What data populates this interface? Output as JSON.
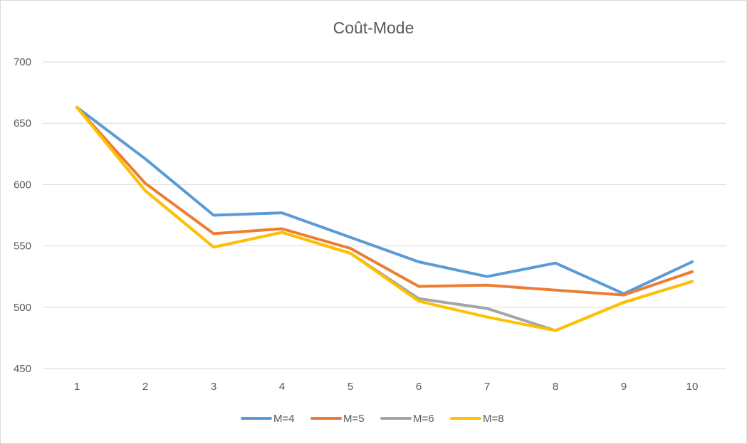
{
  "chart_data": {
    "type": "line",
    "title": "Coût-Mode",
    "xlabel": "",
    "ylabel": "",
    "x": [
      1,
      2,
      3,
      4,
      5,
      6,
      7,
      8,
      9,
      10
    ],
    "ylim": [
      450,
      700
    ],
    "yticks": [
      450,
      500,
      550,
      600,
      650,
      700
    ],
    "grid": true,
    "legend_position": "bottom",
    "series": [
      {
        "name": "M=4",
        "color": "#5b9bd5",
        "values": [
          663,
          621,
          575,
          577,
          557,
          537,
          525,
          536,
          511,
          537
        ]
      },
      {
        "name": "M=5",
        "color": "#ed7d31",
        "values": [
          663,
          601,
          560,
          564,
          548,
          517,
          518,
          514,
          510,
          529
        ]
      },
      {
        "name": "M=6",
        "color": "#a5a5a5",
        "values": [
          663,
          595,
          549,
          561,
          544,
          507,
          499,
          481,
          504,
          521
        ]
      },
      {
        "name": "M=8",
        "color": "#ffc000",
        "values": [
          663,
          595,
          549,
          561,
          544,
          505,
          492,
          481,
          504,
          521
        ]
      }
    ]
  }
}
